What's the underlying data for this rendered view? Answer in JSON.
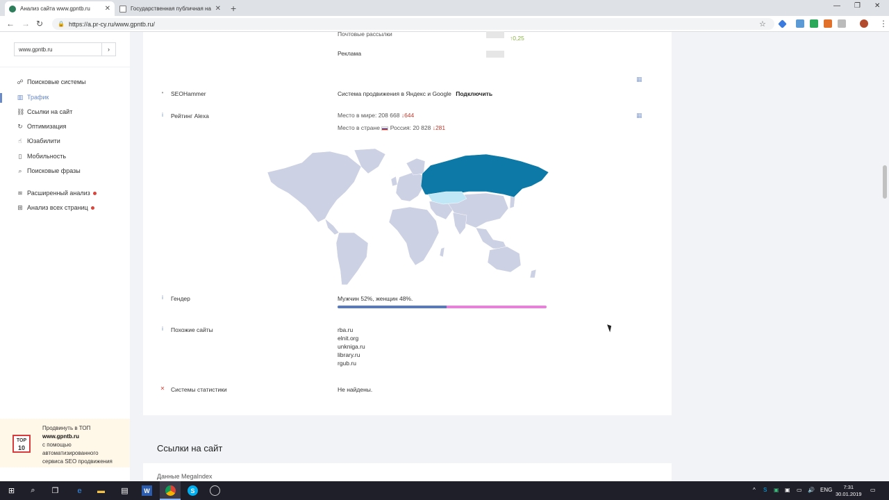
{
  "browser": {
    "tabs": [
      {
        "title": "Анализ сайта www.gpntb.ru",
        "favicon_color": "#2e7d5b"
      },
      {
        "title": "Государственная публичная на",
        "favicon_color": "#777777"
      }
    ],
    "url": "https://a.pr-cy.ru/www.gpntb.ru/"
  },
  "sidebar": {
    "search_value": "www.gpntb.ru",
    "go_label": "›",
    "items": [
      {
        "label": "Поисковые системы",
        "icon": "binoculars-icon"
      },
      {
        "label": "Трафик",
        "icon": "chart-icon",
        "active": true
      },
      {
        "label": "Ссылки на сайт",
        "icon": "link-icon"
      },
      {
        "label": "Оптимизация",
        "icon": "refresh-icon"
      },
      {
        "label": "Юзабилити",
        "icon": "hand-icon"
      },
      {
        "label": "Мобильность",
        "icon": "mobile-icon"
      },
      {
        "label": "Поисковые фразы",
        "icon": "search-icon"
      },
      {
        "label": "Расширенный анализ",
        "icon": "layers-icon",
        "badge": true
      },
      {
        "label": "Анализ всех страниц",
        "icon": "sitemap-icon",
        "badge": true
      }
    ],
    "promo": {
      "line1": "Продвинуть в ТОП",
      "site": "www.gpntb.ru",
      "line3": "с помощью",
      "line4": "автоматизированного",
      "line5": "сервиса SEO продвижения",
      "logo_top": "TOP",
      "logo_bottom": "10"
    }
  },
  "main": {
    "mail": {
      "label": "Почтовые рассылки",
      "delta": "0,25"
    },
    "ads": {
      "label": "Реклама"
    },
    "seohammer": {
      "label": "SEOHammer",
      "text": "Система продвижения в Яндекс и Google",
      "link": "Подключить"
    },
    "alexa": {
      "label": "Рейтинг Alexa",
      "world_prefix": "Место в мире:",
      "world_value": "208 668",
      "world_delta": "644",
      "country_prefix": "Место в стране",
      "country_name": "Россия:",
      "country_value": "20 828",
      "country_delta": "281"
    },
    "gender": {
      "label": "Гендер",
      "text": "Мужчин 52%, женщин 48%.",
      "male_pct": 52,
      "female_pct": 48
    },
    "similar": {
      "label": "Похожие сайты",
      "sites": [
        "rba.ru",
        "elnit.org",
        "unkniga.ru",
        "library.ru",
        "rgub.ru"
      ]
    },
    "stats": {
      "label": "Системы статистики",
      "value": "Не найдены."
    },
    "links_section_title": "Ссылки на сайт",
    "megaindex": "Данные MegaIndex"
  },
  "taskbar": {
    "lang": "ENG",
    "time": "7:31",
    "date": "30.01.2019"
  },
  "colors": {
    "accent": "#6a8ac7",
    "russia": "#0c79a6",
    "kazakhstan": "#bfe7f5",
    "land": "#ccd1e3"
  }
}
